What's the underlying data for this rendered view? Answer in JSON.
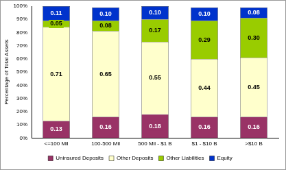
{
  "chart_data": {
    "type": "bar",
    "stacked": true,
    "data_labels": true,
    "grid": false,
    "legend": "bottom",
    "y_label": "Percentage of Total Assets",
    "categories": [
      "<=100 Mil",
      "100-500 Mil",
      "500 Mil - $1 B",
      "$1 - $10 B",
      ">$10 B"
    ],
    "series": [
      {
        "name": "Uninsured Deposits",
        "color": "#993366",
        "values": [
          0.13,
          0.16,
          0.18,
          0.16,
          0.16
        ],
        "value_labels": [
          "0.13",
          "0.16",
          "0.18",
          "0.16",
          "0.16"
        ]
      },
      {
        "name": "Other Deposits",
        "color": "#FFFFCC",
        "values": [
          0.71,
          0.65,
          0.55,
          0.44,
          0.45
        ],
        "value_labels": [
          "0.71",
          "0.65",
          "0.55",
          "0.44",
          "0.45"
        ]
      },
      {
        "name": "Other Liabilities",
        "color": "#99CC00",
        "values": [
          0.05,
          0.08,
          0.17,
          0.29,
          0.3
        ],
        "value_labels": [
          "0.05",
          "0.08",
          "0.17",
          "0.29",
          "0.30"
        ]
      },
      {
        "name": "Equity",
        "color": "#0033CC",
        "values": [
          0.11,
          0.1,
          0.1,
          0.1,
          0.08
        ],
        "value_labels": [
          "0.11",
          "0.10",
          "0.10",
          "0.10",
          "0.08"
        ]
      }
    ],
    "ylim": [
      0,
      1
    ],
    "yticks": [
      {
        "value": 0,
        "label": "0%"
      },
      {
        "value": 0.1,
        "label": "10%"
      },
      {
        "value": 0.2,
        "label": "20%"
      },
      {
        "value": 0.3,
        "label": "30%"
      },
      {
        "value": 0.4,
        "label": "40%"
      },
      {
        "value": 0.5,
        "label": "50%"
      },
      {
        "value": 0.6,
        "label": "60%"
      },
      {
        "value": 0.7,
        "label": "70%"
      },
      {
        "value": 0.8,
        "label": "80%"
      },
      {
        "value": 0.9,
        "label": "90%"
      },
      {
        "value": 1,
        "label": "100%"
      }
    ]
  }
}
